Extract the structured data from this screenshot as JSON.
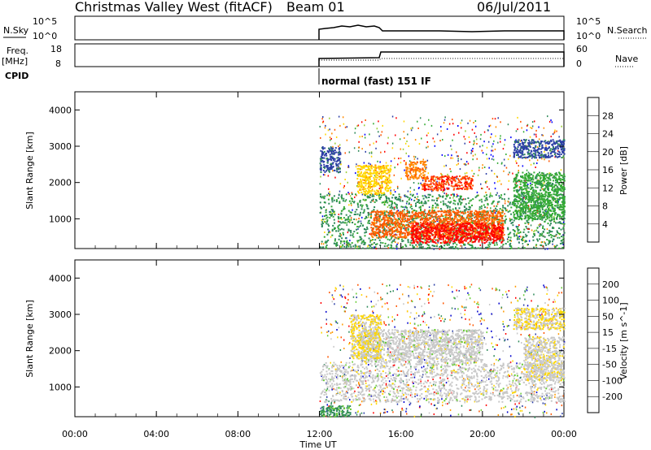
{
  "header": {
    "station": "Christmas Valley West (fitACF)",
    "beam": "Beam 01",
    "date": "06/Jul/2011"
  },
  "summary": {
    "left_labels": {
      "nsky": "N.Sky",
      "freq": "Freq.",
      "freq_unit": "[MHz]",
      "cpid": "CPID"
    },
    "right_labels": {
      "nsearch": "N.Search",
      "nave": "Nave"
    },
    "noise_ticks": [
      "10^5",
      "10^0"
    ],
    "freq_ticks": [
      "18",
      "8"
    ],
    "nave_ticks": [
      "60",
      "0"
    ],
    "cpid_text": "normal (fast) 151 IF"
  },
  "chart_data": [
    {
      "type": "heatmap",
      "name": "Power",
      "ylabel": "Slant Range [km]",
      "yticks": [
        "4000",
        "3000",
        "2000",
        "1000"
      ],
      "ylim": [
        180,
        4500
      ],
      "xlim": [
        0,
        24
      ],
      "colorbar": {
        "label": "Power [dB]",
        "ticks": [
          "28",
          "24",
          "20",
          "16",
          "12",
          "8",
          "4"
        ],
        "colors": [
          "#0000ff",
          "#2c3fa6",
          "#2f8a5a",
          "#33aa33",
          "#9acd32",
          "#ffd700",
          "#ff8c00",
          "#ff5500",
          "#ff0000"
        ],
        "range": [
          0,
          32
        ]
      },
      "data_start_hour": 12,
      "regions": [
        {
          "t0": 12.0,
          "t1": 24.0,
          "r0": 200,
          "r1": 1700,
          "level": 10
        },
        {
          "t0": 14.5,
          "t1": 21.0,
          "r0": 500,
          "r1": 1250,
          "level": 26
        },
        {
          "t0": 16.5,
          "t1": 21.0,
          "r0": 350,
          "r1": 900,
          "level": 30
        },
        {
          "t0": 13.8,
          "t1": 15.5,
          "r0": 1700,
          "r1": 2500,
          "level": 20
        },
        {
          "t0": 17.0,
          "t1": 19.5,
          "r0": 1800,
          "r1": 2200,
          "level": 28
        },
        {
          "t0": 16.2,
          "t1": 17.2,
          "r0": 2100,
          "r1": 2600,
          "level": 24
        },
        {
          "t0": 21.5,
          "t1": 24.0,
          "r0": 2700,
          "r1": 3200,
          "level": 6
        },
        {
          "t0": 21.5,
          "t1": 24.0,
          "r0": 1000,
          "r1": 2300,
          "level": 12
        },
        {
          "t0": 12.0,
          "t1": 13.0,
          "r0": 2300,
          "r1": 3000,
          "level": 6
        }
      ]
    },
    {
      "type": "heatmap",
      "name": "Velocity",
      "ylabel": "Slant Range [km]",
      "yticks": [
        "4000",
        "3000",
        "2000",
        "1000"
      ],
      "ylim": [
        180,
        4500
      ],
      "xlim": [
        0,
        24
      ],
      "xticks": [
        "00:00",
        "04:00",
        "08:00",
        "12:00",
        "16:00",
        "20:00",
        "00:00"
      ],
      "xlabel": "Time UT",
      "colorbar": {
        "label": "Velocity [m s^-1]",
        "ticks": [
          "200",
          "100",
          "50",
          "15",
          "-15",
          "-50",
          "-100",
          "-200"
        ],
        "colors": [
          "#0000cc",
          "#2c3fa6",
          "#2f8a5a",
          "#66cc33",
          "#c8c8c8",
          "#ffd700",
          "#ff9900",
          "#ff5500",
          "#ff0000"
        ],
        "range": [
          -250,
          250
        ]
      },
      "data_start_hour": 12,
      "regions": [
        {
          "t0": 12.0,
          "t1": 24.0,
          "r0": 600,
          "r1": 1700,
          "level": 0
        },
        {
          "t0": 12.0,
          "t1": 13.5,
          "r0": 200,
          "r1": 500,
          "level": -100
        },
        {
          "t0": 14.0,
          "t1": 20.0,
          "r0": 1700,
          "r1": 2600,
          "level": 0
        },
        {
          "t0": 13.5,
          "t1": 15.0,
          "r0": 1800,
          "r1": 3000,
          "level": 30
        },
        {
          "t0": 21.5,
          "t1": 24.0,
          "r0": 2600,
          "r1": 3200,
          "level": 30
        },
        {
          "t0": 22.0,
          "t1": 24.0,
          "r0": 1200,
          "r1": 2400,
          "level": 10
        }
      ]
    }
  ]
}
